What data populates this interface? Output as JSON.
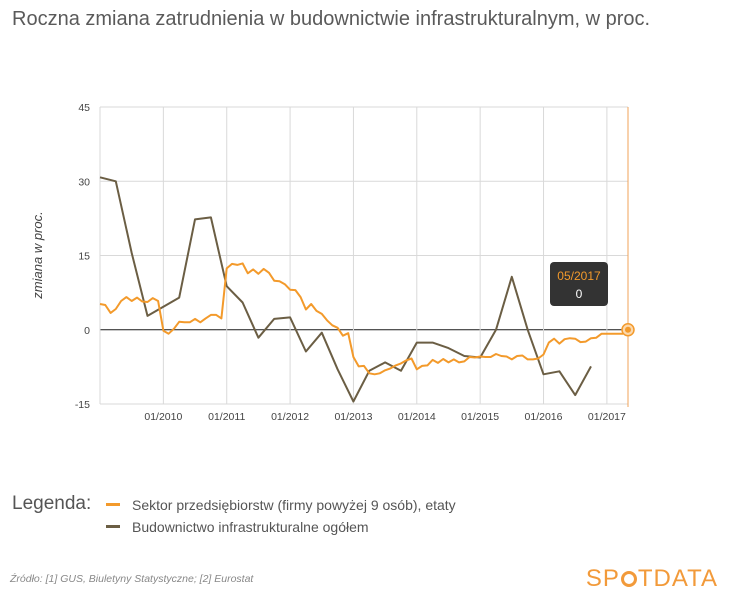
{
  "title": "Roczna zmiana zatrudnienia w budownictwie infrastrukturalnym, w proc.",
  "legend": {
    "label": "Legenda:",
    "items": [
      {
        "name": "Sektor przedsiębiorstw (firmy powyżej 9 osób), etaty",
        "color": "#f39a2b"
      },
      {
        "name": "Budownictwo infrastrukturalne ogółem",
        "color": "#6b5e44"
      }
    ]
  },
  "source": "Źródło: [1] GUS, Biuletyny Statystyczne; [2] Eurostat",
  "logo": {
    "part1": "SP",
    "part2": "TDATA"
  },
  "tooltip": {
    "date": "05/2017",
    "value": "0"
  },
  "colors": {
    "orange": "#f39a2b",
    "brown": "#6b5e44",
    "grid": "#d9d9d9",
    "tooltip_bg": "#333333"
  },
  "chart_data": {
    "type": "line",
    "ylabel": "zmiana w proc.",
    "ylim": [
      -15,
      45
    ],
    "yticks": [
      45,
      30,
      15,
      0,
      -15
    ],
    "xlim": [
      "2009-01",
      "2017-05"
    ],
    "xticks": [
      "01/2010",
      "01/2011",
      "01/2012",
      "01/2013",
      "01/2014",
      "01/2015",
      "01/2016",
      "01/2017"
    ],
    "grid": true,
    "series": [
      {
        "name": "Sektor przedsiębiorstw (firmy powyżej 9 osób), etaty",
        "points": [
          [
            "2009-01",
            5.2
          ],
          [
            "2009-02",
            5.0
          ],
          [
            "2009-03",
            3.4
          ],
          [
            "2009-04",
            4.2
          ],
          [
            "2009-05",
            5.8
          ],
          [
            "2009-06",
            6.6
          ],
          [
            "2009-07",
            5.8
          ],
          [
            "2009-08",
            6.5
          ],
          [
            "2009-09",
            5.7
          ],
          [
            "2009-10",
            5.6
          ],
          [
            "2009-11",
            6.4
          ],
          [
            "2009-12",
            5.8
          ],
          [
            "2010-01",
            -0.2
          ],
          [
            "2010-02",
            -0.8
          ],
          [
            "2010-03",
            0.2
          ],
          [
            "2010-04",
            1.6
          ],
          [
            "2010-05",
            1.5
          ],
          [
            "2010-06",
            1.5
          ],
          [
            "2010-07",
            2.2
          ],
          [
            "2010-08",
            1.5
          ],
          [
            "2010-09",
            2.3
          ],
          [
            "2010-10",
            3.0
          ],
          [
            "2010-11",
            3.0
          ],
          [
            "2010-12",
            2.3
          ],
          [
            "2011-01",
            12.4
          ],
          [
            "2011-02",
            13.3
          ],
          [
            "2011-03",
            13.1
          ],
          [
            "2011-04",
            13.4
          ],
          [
            "2011-05",
            11.4
          ],
          [
            "2011-06",
            12.2
          ],
          [
            "2011-07",
            11.3
          ],
          [
            "2011-08",
            12.3
          ],
          [
            "2011-09",
            11.5
          ],
          [
            "2011-10",
            9.9
          ],
          [
            "2011-11",
            9.8
          ],
          [
            "2011-12",
            9.2
          ],
          [
            "2012-01",
            8.1
          ],
          [
            "2012-02",
            8.0
          ],
          [
            "2012-03",
            6.6
          ],
          [
            "2012-04",
            4.1
          ],
          [
            "2012-05",
            5.2
          ],
          [
            "2012-06",
            3.8
          ],
          [
            "2012-07",
            3.2
          ],
          [
            "2012-08",
            1.9
          ],
          [
            "2012-09",
            0.9
          ],
          [
            "2012-10",
            0.4
          ],
          [
            "2012-11",
            -1.2
          ],
          [
            "2012-12",
            -0.7
          ],
          [
            "2013-01",
            -5.5
          ],
          [
            "2013-02",
            -7.4
          ],
          [
            "2013-03",
            -7.3
          ],
          [
            "2013-04",
            -8.8
          ],
          [
            "2013-05",
            -9.0
          ],
          [
            "2013-06",
            -8.8
          ],
          [
            "2013-07",
            -8.2
          ],
          [
            "2013-08",
            -7.8
          ],
          [
            "2013-09",
            -7.2
          ],
          [
            "2013-10",
            -6.8
          ],
          [
            "2013-11",
            -6.2
          ],
          [
            "2013-12",
            -5.8
          ],
          [
            "2014-01",
            -8.0
          ],
          [
            "2014-02",
            -7.3
          ],
          [
            "2014-03",
            -7.2
          ],
          [
            "2014-04",
            -6.1
          ],
          [
            "2014-05",
            -6.7
          ],
          [
            "2014-06",
            -5.9
          ],
          [
            "2014-07",
            -6.6
          ],
          [
            "2014-08",
            -6.0
          ],
          [
            "2014-09",
            -6.6
          ],
          [
            "2014-10",
            -6.4
          ],
          [
            "2014-11",
            -5.5
          ],
          [
            "2014-12",
            -5.6
          ],
          [
            "2015-01",
            -5.4
          ],
          [
            "2015-02",
            -5.5
          ],
          [
            "2015-03",
            -5.5
          ],
          [
            "2015-04",
            -4.9
          ],
          [
            "2015-05",
            -5.3
          ],
          [
            "2015-06",
            -5.4
          ],
          [
            "2015-07",
            -6.0
          ],
          [
            "2015-08",
            -5.3
          ],
          [
            "2015-09",
            -5.2
          ],
          [
            "2015-10",
            -6.0
          ],
          [
            "2015-11",
            -6.0
          ],
          [
            "2015-12",
            -5.8
          ],
          [
            "2016-01",
            -5.0
          ],
          [
            "2016-02",
            -2.6
          ],
          [
            "2016-03",
            -1.8
          ],
          [
            "2016-04",
            -2.8
          ],
          [
            "2016-05",
            -1.9
          ],
          [
            "2016-06",
            -1.7
          ],
          [
            "2016-07",
            -1.8
          ],
          [
            "2016-08",
            -2.5
          ],
          [
            "2016-09",
            -2.4
          ],
          [
            "2016-10",
            -1.7
          ],
          [
            "2016-11",
            -1.6
          ],
          [
            "2016-12",
            -0.8
          ],
          [
            "2017-01",
            -0.8
          ],
          [
            "2017-02",
            -0.8
          ],
          [
            "2017-03",
            -0.8
          ],
          [
            "2017-04",
            -0.8
          ],
          [
            "2017-05",
            0.0
          ]
        ]
      },
      {
        "name": "Budownictwo infrastrukturalne ogółem",
        "points": [
          [
            "2009-01",
            30.8
          ],
          [
            "2009-04",
            30.0
          ],
          [
            "2009-07",
            15.5
          ],
          [
            "2009-10",
            2.8
          ],
          [
            "2010-04",
            6.5
          ],
          [
            "2010-07",
            22.3
          ],
          [
            "2010-10",
            22.7
          ],
          [
            "2011-01",
            8.8
          ],
          [
            "2011-04",
            5.5
          ],
          [
            "2011-07",
            -1.6
          ],
          [
            "2011-10",
            2.2
          ],
          [
            "2012-01",
            2.5
          ],
          [
            "2012-04",
            -4.4
          ],
          [
            "2012-07",
            -0.6
          ],
          [
            "2012-10",
            -8.0
          ],
          [
            "2013-01",
            -14.5
          ],
          [
            "2013-04",
            -8.3
          ],
          [
            "2013-07",
            -6.6
          ],
          [
            "2013-10",
            -8.3
          ],
          [
            "2014-01",
            -2.6
          ],
          [
            "2014-04",
            -2.6
          ],
          [
            "2014-07",
            -3.7
          ],
          [
            "2014-10",
            -5.3
          ],
          [
            "2015-01",
            -5.6
          ],
          [
            "2015-04",
            0.0
          ],
          [
            "2015-07",
            10.7
          ],
          [
            "2015-10",
            0.0
          ],
          [
            "2016-01",
            -9.0
          ],
          [
            "2016-04",
            -8.4
          ],
          [
            "2016-07",
            -13.2
          ],
          [
            "2016-10",
            -7.4
          ]
        ]
      }
    ]
  }
}
